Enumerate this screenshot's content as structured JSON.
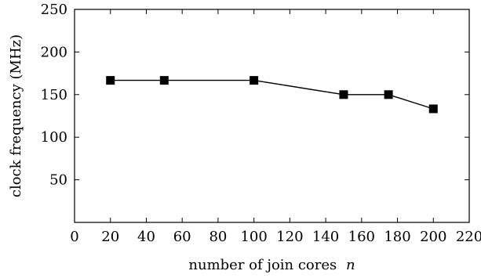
{
  "chart_data": {
    "type": "line",
    "xlabel": "number of join cores",
    "xlabel_var": "n",
    "ylabel": "clock frequency (MHz)",
    "xlim": [
      0,
      220
    ],
    "ylim": [
      0,
      250
    ],
    "x_ticks": [
      0,
      20,
      40,
      60,
      80,
      100,
      120,
      140,
      160,
      180,
      200,
      220
    ],
    "y_ticks": [
      50,
      100,
      150,
      200,
      250
    ],
    "grid": false,
    "marker": "square",
    "series": [
      {
        "x": [
          20,
          50,
          100,
          150,
          175,
          200
        ],
        "y": [
          166.7,
          166.7,
          166.7,
          150,
          150,
          133.3
        ]
      }
    ],
    "colors": {
      "line": "#000000",
      "marker": "#000000",
      "axis": "#000000"
    }
  }
}
